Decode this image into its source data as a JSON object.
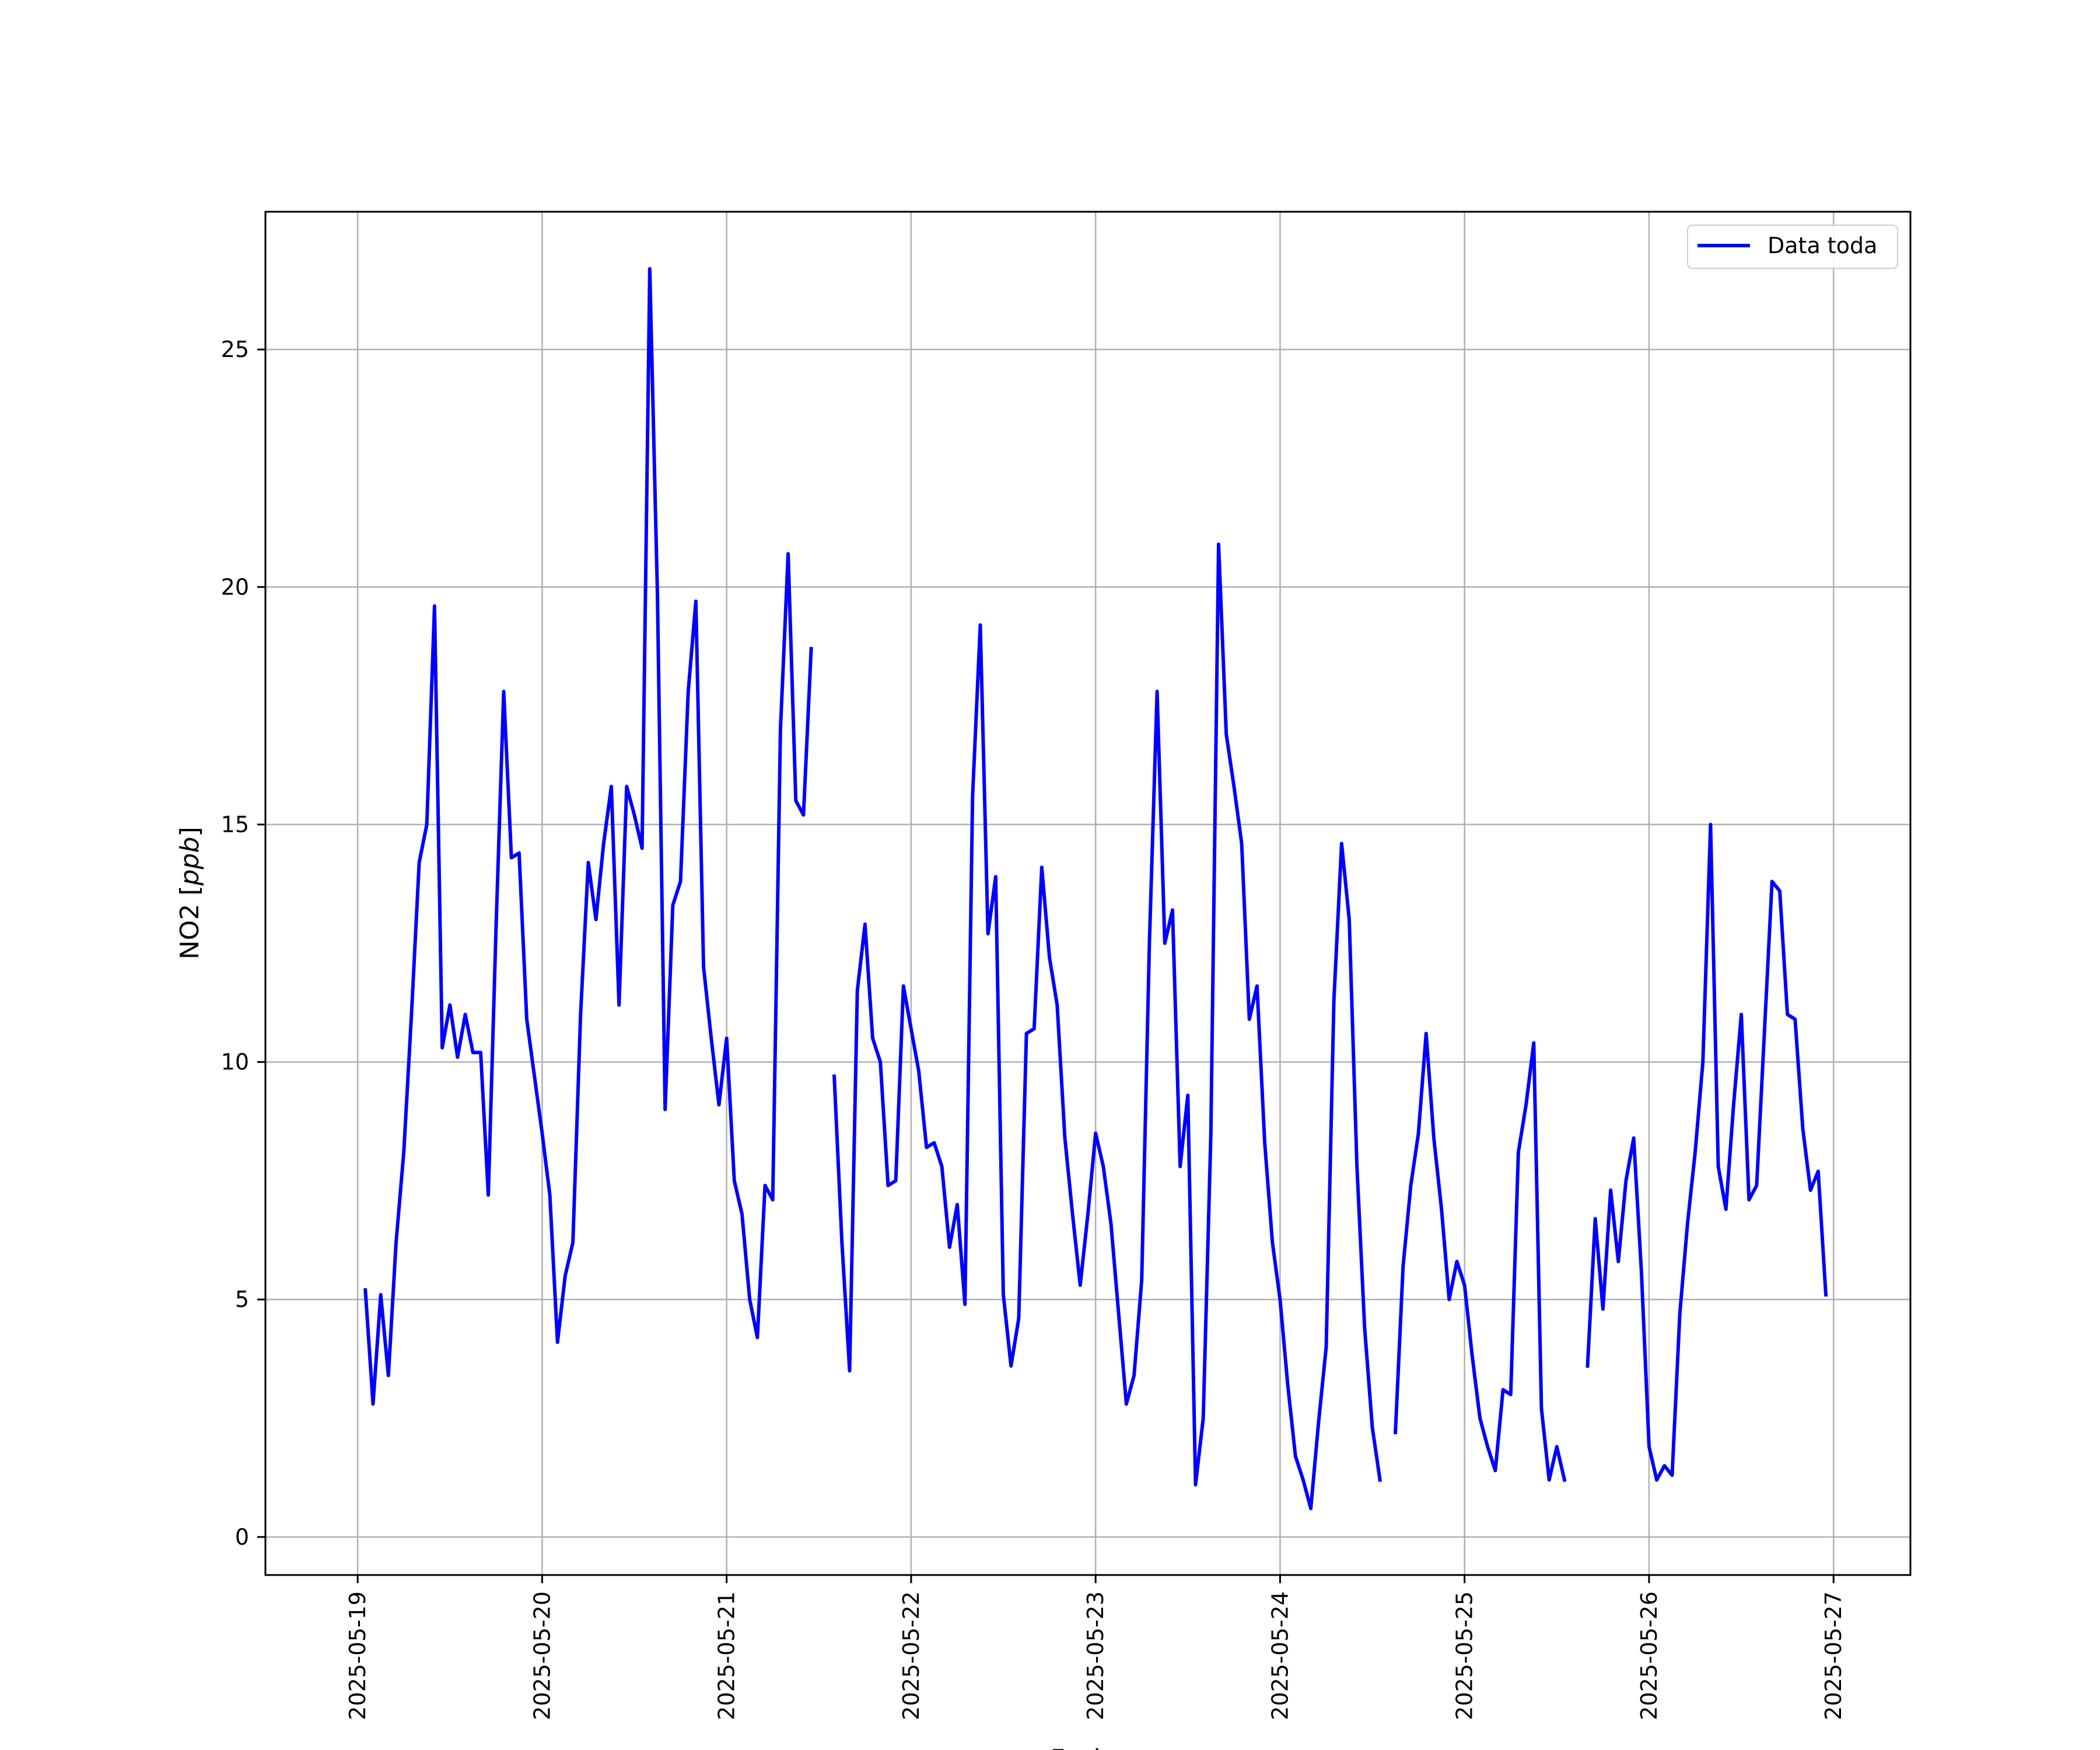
{
  "chart_data": {
    "type": "line",
    "xlabel": "Fecha",
    "ylabel_main": "NO2 [",
    "ylabel_unit": "ppb",
    "ylabel_close": "]",
    "x_type": "datetime",
    "xlim": [
      "2025-05-18 12:00",
      "2025-05-27 10:00"
    ],
    "ylim": [
      -0.8,
      27.9
    ],
    "grid": true,
    "legend_position": "top-right",
    "x_ticks": [
      "2025-05-19",
      "2025-05-20",
      "2025-05-21",
      "2025-05-22",
      "2025-05-23",
      "2025-05-24",
      "2025-05-25",
      "2025-05-26",
      "2025-05-27"
    ],
    "y_ticks": [
      0,
      5,
      10,
      15,
      20,
      25
    ],
    "colors": {
      "line": "#0000ff",
      "grid": "#b0b0b0"
    },
    "series": [
      {
        "name": "Data toda",
        "segments": [
          [
            [
              "2025-05-19 01:00",
              5.2
            ],
            [
              "2025-05-19 02:00",
              2.8
            ],
            [
              "2025-05-19 03:00",
              5.1
            ],
            [
              "2025-05-19 04:00",
              3.4
            ],
            [
              "2025-05-19 05:00",
              6.2
            ],
            [
              "2025-05-19 06:00",
              8.1
            ],
            [
              "2025-05-19 07:00",
              11.0
            ],
            [
              "2025-05-19 08:00",
              14.2
            ],
            [
              "2025-05-19 09:00",
              15.0
            ],
            [
              "2025-05-19 10:00",
              19.6
            ],
            [
              "2025-05-19 11:00",
              10.3
            ],
            [
              "2025-05-19 12:00",
              11.2
            ],
            [
              "2025-05-19 13:00",
              10.1
            ],
            [
              "2025-05-19 14:00",
              11.0
            ],
            [
              "2025-05-19 15:00",
              10.2
            ],
            [
              "2025-05-19 16:00",
              10.2
            ],
            [
              "2025-05-19 17:00",
              7.2
            ],
            [
              "2025-05-19 18:00",
              12.8
            ],
            [
              "2025-05-19 19:00",
              17.8
            ],
            [
              "2025-05-19 20:00",
              14.3
            ],
            [
              "2025-05-19 21:00",
              14.4
            ],
            [
              "2025-05-19 22:00",
              10.9
            ],
            [
              "2025-05-19 23:00",
              9.7
            ],
            [
              "2025-05-20 00:00",
              8.5
            ],
            [
              "2025-05-20 01:00",
              7.2
            ],
            [
              "2025-05-20 02:00",
              4.1
            ],
            [
              "2025-05-20 03:00",
              5.5
            ],
            [
              "2025-05-20 04:00",
              6.2
            ],
            [
              "2025-05-20 05:00",
              11.0
            ],
            [
              "2025-05-20 06:00",
              14.2
            ],
            [
              "2025-05-20 07:00",
              13.0
            ],
            [
              "2025-05-20 08:00",
              14.6
            ],
            [
              "2025-05-20 09:00",
              15.8
            ],
            [
              "2025-05-20 10:00",
              11.2
            ],
            [
              "2025-05-20 11:00",
              15.8
            ],
            [
              "2025-05-20 12:00",
              15.2
            ],
            [
              "2025-05-20 13:00",
              14.5
            ],
            [
              "2025-05-20 14:00",
              26.7
            ],
            [
              "2025-05-20 15:00",
              19.8
            ],
            [
              "2025-05-20 16:00",
              9.0
            ],
            [
              "2025-05-20 17:00",
              13.3
            ],
            [
              "2025-05-20 18:00",
              13.8
            ],
            [
              "2025-05-20 19:00",
              17.8
            ],
            [
              "2025-05-20 20:00",
              19.7
            ],
            [
              "2025-05-20 21:00",
              12.0
            ],
            [
              "2025-05-20 22:00",
              10.5
            ],
            [
              "2025-05-20 23:00",
              9.1
            ],
            [
              "2025-05-21 00:00",
              10.5
            ],
            [
              "2025-05-21 01:00",
              7.5
            ],
            [
              "2025-05-21 02:00",
              6.8
            ],
            [
              "2025-05-21 03:00",
              5.0
            ],
            [
              "2025-05-21 04:00",
              4.2
            ],
            [
              "2025-05-21 05:00",
              7.4
            ],
            [
              "2025-05-21 06:00",
              7.1
            ],
            [
              "2025-05-21 07:00",
              17.0
            ],
            [
              "2025-05-21 08:00",
              20.7
            ],
            [
              "2025-05-21 09:00",
              15.5
            ],
            [
              "2025-05-21 10:00",
              15.2
            ],
            [
              "2025-05-21 11:00",
              18.7
            ]
          ],
          [
            [
              "2025-05-21 14:00",
              9.7
            ],
            [
              "2025-05-21 15:00",
              6.2
            ],
            [
              "2025-05-21 16:00",
              3.5
            ],
            [
              "2025-05-21 17:00",
              11.5
            ],
            [
              "2025-05-21 18:00",
              12.9
            ],
            [
              "2025-05-21 19:00",
              10.5
            ],
            [
              "2025-05-21 20:00",
              10.0
            ],
            [
              "2025-05-21 21:00",
              7.4
            ],
            [
              "2025-05-21 22:00",
              7.5
            ],
            [
              "2025-05-21 23:00",
              11.6
            ],
            [
              "2025-05-22 00:00",
              10.7
            ],
            [
              "2025-05-22 01:00",
              9.8
            ],
            [
              "2025-05-22 02:00",
              8.2
            ],
            [
              "2025-05-22 03:00",
              8.3
            ],
            [
              "2025-05-22 04:00",
              7.8
            ],
            [
              "2025-05-22 05:00",
              6.1
            ],
            [
              "2025-05-22 06:00",
              7.0
            ],
            [
              "2025-05-22 07:00",
              4.9
            ],
            [
              "2025-05-22 08:00",
              15.6
            ],
            [
              "2025-05-22 09:00",
              19.2
            ],
            [
              "2025-05-22 10:00",
              12.7
            ],
            [
              "2025-05-22 11:00",
              13.9
            ],
            [
              "2025-05-22 12:00",
              5.1
            ],
            [
              "2025-05-22 13:00",
              3.6
            ],
            [
              "2025-05-22 14:00",
              4.6
            ],
            [
              "2025-05-22 15:00",
              10.6
            ],
            [
              "2025-05-22 16:00",
              10.7
            ],
            [
              "2025-05-22 17:00",
              14.1
            ],
            [
              "2025-05-22 18:00",
              12.2
            ],
            [
              "2025-05-22 19:00",
              11.2
            ],
            [
              "2025-05-22 20:00",
              8.4
            ],
            [
              "2025-05-22 21:00",
              6.8
            ],
            [
              "2025-05-22 22:00",
              5.3
            ],
            [
              "2025-05-22 23:00",
              6.8
            ],
            [
              "2025-05-23 00:00",
              8.5
            ],
            [
              "2025-05-23 01:00",
              7.8
            ],
            [
              "2025-05-23 02:00",
              6.6
            ],
            [
              "2025-05-23 03:00",
              4.7
            ],
            [
              "2025-05-23 04:00",
              2.8
            ],
            [
              "2025-05-23 05:00",
              3.4
            ],
            [
              "2025-05-23 06:00",
              5.4
            ],
            [
              "2025-05-23 07:00",
              12.5
            ],
            [
              "2025-05-23 08:00",
              17.8
            ],
            [
              "2025-05-23 09:00",
              12.5
            ],
            [
              "2025-05-23 10:00",
              13.2
            ],
            [
              "2025-05-23 11:00",
              7.8
            ],
            [
              "2025-05-23 12:00",
              9.3
            ],
            [
              "2025-05-23 13:00",
              1.1
            ],
            [
              "2025-05-23 14:00",
              2.5
            ],
            [
              "2025-05-23 15:00",
              8.5
            ],
            [
              "2025-05-23 16:00",
              20.9
            ],
            [
              "2025-05-23 17:00",
              16.9
            ],
            [
              "2025-05-23 18:00",
              15.8
            ],
            [
              "2025-05-23 19:00",
              14.6
            ],
            [
              "2025-05-23 20:00",
              10.9
            ],
            [
              "2025-05-23 21:00",
              11.6
            ],
            [
              "2025-05-23 22:00",
              8.3
            ],
            [
              "2025-05-23 23:00",
              6.2
            ],
            [
              "2025-05-24 00:00",
              5.0
            ],
            [
              "2025-05-24 01:00",
              3.2
            ],
            [
              "2025-05-24 02:00",
              1.7
            ],
            [
              "2025-05-24 03:00",
              1.2
            ],
            [
              "2025-05-24 04:00",
              0.6
            ],
            [
              "2025-05-24 05:00",
              2.4
            ],
            [
              "2025-05-24 06:00",
              4.0
            ],
            [
              "2025-05-24 07:00",
              11.3
            ],
            [
              "2025-05-24 08:00",
              14.6
            ],
            [
              "2025-05-24 09:00",
              13.0
            ],
            [
              "2025-05-24 10:00",
              7.8
            ],
            [
              "2025-05-24 11:00",
              4.4
            ],
            [
              "2025-05-24 12:00",
              2.3
            ],
            [
              "2025-05-24 13:00",
              1.2
            ]
          ],
          [
            [
              "2025-05-24 15:00",
              2.2
            ],
            [
              "2025-05-24 16:00",
              5.7
            ],
            [
              "2025-05-24 17:00",
              7.4
            ],
            [
              "2025-05-24 18:00",
              8.5
            ],
            [
              "2025-05-24 19:00",
              10.6
            ],
            [
              "2025-05-24 20:00",
              8.4
            ],
            [
              "2025-05-24 21:00",
              6.9
            ],
            [
              "2025-05-24 22:00",
              5.0
            ],
            [
              "2025-05-24 23:00",
              5.8
            ],
            [
              "2025-05-25 00:00",
              5.3
            ],
            [
              "2025-05-25 01:00",
              3.8
            ],
            [
              "2025-05-25 02:00",
              2.5
            ],
            [
              "2025-05-25 03:00",
              1.9
            ],
            [
              "2025-05-25 04:00",
              1.4
            ],
            [
              "2025-05-25 05:00",
              3.1
            ],
            [
              "2025-05-25 06:00",
              3.0
            ],
            [
              "2025-05-25 07:00",
              8.1
            ],
            [
              "2025-05-25 08:00",
              9.1
            ],
            [
              "2025-05-25 09:00",
              10.4
            ],
            [
              "2025-05-25 10:00",
              2.7
            ],
            [
              "2025-05-25 11:00",
              1.2
            ],
            [
              "2025-05-25 12:00",
              1.9
            ],
            [
              "2025-05-25 13:00",
              1.2
            ]
          ],
          [
            [
              "2025-05-25 16:00",
              3.6
            ],
            [
              "2025-05-25 17:00",
              6.7
            ],
            [
              "2025-05-25 18:00",
              4.8
            ],
            [
              "2025-05-25 19:00",
              7.3
            ],
            [
              "2025-05-25 20:00",
              5.8
            ],
            [
              "2025-05-25 21:00",
              7.5
            ],
            [
              "2025-05-25 22:00",
              8.4
            ],
            [
              "2025-05-25 23:00",
              5.6
            ],
            [
              "2025-05-26 00:00",
              1.9
            ],
            [
              "2025-05-26 01:00",
              1.2
            ],
            [
              "2025-05-26 02:00",
              1.5
            ],
            [
              "2025-05-26 03:00",
              1.3
            ],
            [
              "2025-05-26 04:00",
              4.7
            ],
            [
              "2025-05-26 05:00",
              6.6
            ],
            [
              "2025-05-26 06:00",
              8.1
            ],
            [
              "2025-05-26 07:00",
              10.0
            ],
            [
              "2025-05-26 08:00",
              15.0
            ],
            [
              "2025-05-26 09:00",
              7.8
            ],
            [
              "2025-05-26 10:00",
              6.9
            ],
            [
              "2025-05-26 11:00",
              9.1
            ],
            [
              "2025-05-26 12:00",
              11.0
            ],
            [
              "2025-05-26 13:00",
              7.1
            ],
            [
              "2025-05-26 14:00",
              7.4
            ],
            [
              "2025-05-26 15:00",
              10.6
            ],
            [
              "2025-05-26 16:00",
              13.8
            ],
            [
              "2025-05-26 17:00",
              13.6
            ],
            [
              "2025-05-26 18:00",
              11.0
            ],
            [
              "2025-05-26 19:00",
              10.9
            ],
            [
              "2025-05-26 20:00",
              8.6
            ],
            [
              "2025-05-26 21:00",
              7.3
            ],
            [
              "2025-05-26 22:00",
              7.7
            ],
            [
              "2025-05-26 23:00",
              5.1
            ]
          ]
        ]
      }
    ]
  }
}
